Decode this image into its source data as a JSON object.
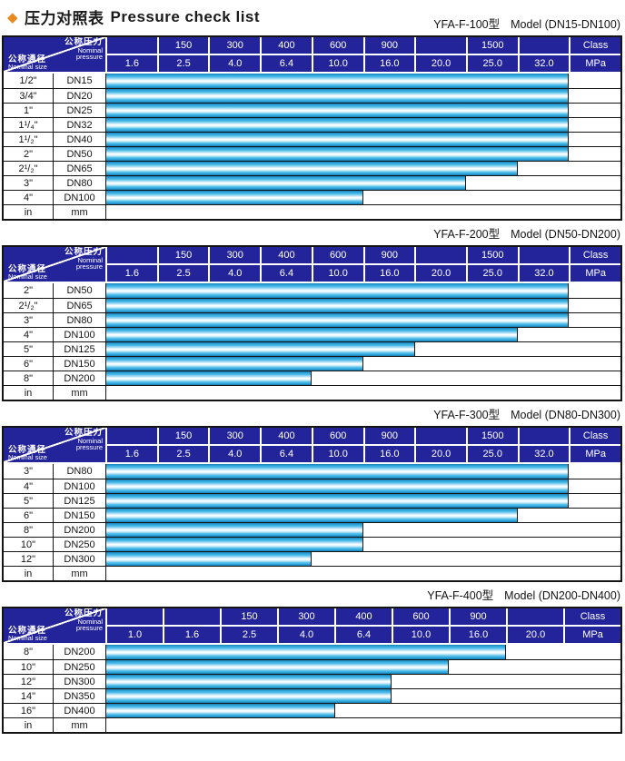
{
  "page": {
    "title": {
      "diamond_icon": "◆",
      "zh": "压力对照表",
      "en": "Pressure check list"
    }
  },
  "corner_header": {
    "pressure_zh": "公称压力",
    "pressure_en_line1": "Nominal",
    "pressure_en_line2": "pressure",
    "size_zh": "公称通径",
    "size_en": "Nominal size"
  },
  "colors": {
    "header_navy": "#24249a",
    "bar_cyan": "#2da9de",
    "bar_highlight": "#ffffff",
    "bar_edge": "#1a7fb4",
    "diamond_orange": "#e8891e",
    "border_black": "#141414",
    "header_text": "#ffffff"
  },
  "tables": [
    {
      "model": "YFA-F-100型",
      "model_desc": "Model (DN15-DN100)",
      "class_row": [
        "",
        "150",
        "300",
        "400",
        "600",
        "900",
        "",
        "1500",
        "",
        "Class"
      ],
      "pressure_row": [
        "1.6",
        "2.5",
        "4.0",
        "6.4",
        "10.0",
        "16.0",
        "20.0",
        "25.0",
        "32.0",
        "MPa"
      ],
      "rows": [
        {
          "inch": "1/2\"",
          "dn": "DN15",
          "bar_cols": 9
        },
        {
          "inch": "3/4\"",
          "dn": "DN20",
          "bar_cols": 9
        },
        {
          "inch": "1\"",
          "dn": "DN25",
          "bar_cols": 9
        },
        {
          "inch": "1¹/₄\"",
          "dn": "DN32",
          "bar_cols": 9
        },
        {
          "inch": "1¹/₂\"",
          "dn": "DN40",
          "bar_cols": 9
        },
        {
          "inch": "2\"",
          "dn": "DN50",
          "bar_cols": 9
        },
        {
          "inch": "2¹/₂\"",
          "dn": "DN65",
          "bar_cols": 8
        },
        {
          "inch": "3\"",
          "dn": "DN80",
          "bar_cols": 7
        },
        {
          "inch": "4\"",
          "dn": "DN100",
          "bar_cols": 5
        },
        {
          "inch": "in",
          "dn": "mm",
          "bar_cols": 0
        }
      ]
    },
    {
      "model": "YFA-F-200型",
      "model_desc": "Model (DN50-DN200)",
      "class_row": [
        "",
        "150",
        "300",
        "400",
        "600",
        "900",
        "",
        "1500",
        "",
        "Class"
      ],
      "pressure_row": [
        "1.6",
        "2.5",
        "4.0",
        "6.4",
        "10.0",
        "16.0",
        "20.0",
        "25.0",
        "32.0",
        "MPa"
      ],
      "rows": [
        {
          "inch": "2\"",
          "dn": "DN50",
          "bar_cols": 9
        },
        {
          "inch": "2¹/₂\"",
          "dn": "DN65",
          "bar_cols": 9
        },
        {
          "inch": "3\"",
          "dn": "DN80",
          "bar_cols": 9
        },
        {
          "inch": "4\"",
          "dn": "DN100",
          "bar_cols": 8
        },
        {
          "inch": "5\"",
          "dn": "DN125",
          "bar_cols": 6
        },
        {
          "inch": "6\"",
          "dn": "DN150",
          "bar_cols": 5
        },
        {
          "inch": "8\"",
          "dn": "DN200",
          "bar_cols": 4
        },
        {
          "inch": "in",
          "dn": "mm",
          "bar_cols": 0
        }
      ]
    },
    {
      "model": "YFA-F-300型",
      "model_desc": "Model (DN80-DN300)",
      "class_row": [
        "",
        "150",
        "300",
        "400",
        "600",
        "900",
        "",
        "1500",
        "",
        "Class"
      ],
      "pressure_row": [
        "1.6",
        "2.5",
        "4.0",
        "6.4",
        "10.0",
        "16.0",
        "20.0",
        "25.0",
        "32.0",
        "MPa"
      ],
      "rows": [
        {
          "inch": "3\"",
          "dn": "DN80",
          "bar_cols": 9
        },
        {
          "inch": "4\"",
          "dn": "DN100",
          "bar_cols": 9
        },
        {
          "inch": "5\"",
          "dn": "DN125",
          "bar_cols": 9
        },
        {
          "inch": "6\"",
          "dn": "DN150",
          "bar_cols": 8
        },
        {
          "inch": "8\"",
          "dn": "DN200",
          "bar_cols": 5
        },
        {
          "inch": "10\"",
          "dn": "DN250",
          "bar_cols": 5
        },
        {
          "inch": "12\"",
          "dn": "DN300",
          "bar_cols": 4
        },
        {
          "inch": "in",
          "dn": "mm",
          "bar_cols": 0
        }
      ]
    },
    {
      "model": "YFA-F-400型",
      "model_desc": "Model (DN200-DN400)",
      "class_row": [
        "",
        "",
        "150",
        "300",
        "400",
        "600",
        "900",
        "",
        "Class"
      ],
      "pressure_row": [
        "1.0",
        "1.6",
        "2.5",
        "4.0",
        "6.4",
        "10.0",
        "16.0",
        "20.0",
        "MPa"
      ],
      "rows": [
        {
          "inch": "8\"",
          "dn": "DN200",
          "bar_cols": 7
        },
        {
          "inch": "10\"",
          "dn": "DN250",
          "bar_cols": 6
        },
        {
          "inch": "12\"",
          "dn": "DN300",
          "bar_cols": 5
        },
        {
          "inch": "14\"",
          "dn": "DN350",
          "bar_cols": 5
        },
        {
          "inch": "16\"",
          "dn": "DN400",
          "bar_cols": 4
        },
        {
          "inch": "in",
          "dn": "mm",
          "bar_cols": 0
        }
      ]
    }
  ]
}
